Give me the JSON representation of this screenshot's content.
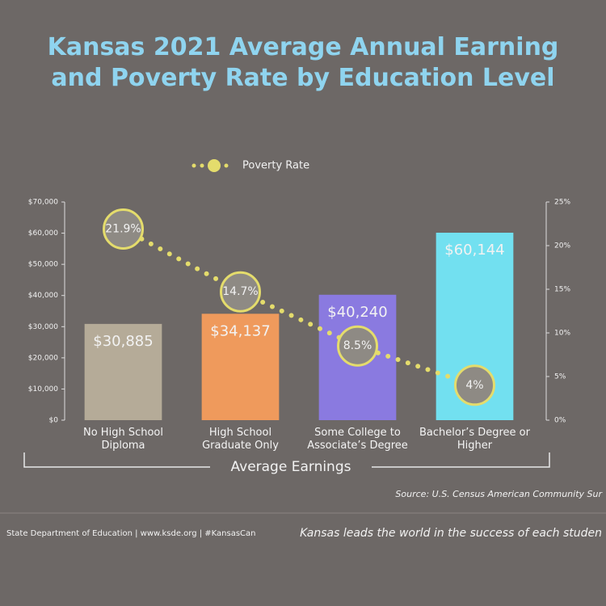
{
  "chart_data": {
    "type": "bar_line",
    "title": "Kansas 2021 Average Annual Earning and Poverty Rate by Education Level",
    "categories": [
      "No High School Diploma",
      "High School Graduate Only",
      "Some College to Associate’s Degree",
      "Bachelor’s Degree or Higher"
    ],
    "series": [
      {
        "name": "Average Earnings",
        "type": "bar",
        "colors": [
          "#b5ab98",
          "#ef9a5c",
          "#8a7ae0",
          "#72e0f0"
        ],
        "values": [
          30885,
          34137,
          40240,
          60144
        ],
        "value_labels": [
          "$30,885",
          "$34,137",
          "$40,240",
          "$60,144"
        ]
      },
      {
        "name": "Poverty Rate",
        "type": "line",
        "axis": "y2",
        "color": "#e4dc6c",
        "values": [
          21.9,
          14.7,
          8.5,
          4
        ],
        "value_labels": [
          "21.9%",
          "14.7%",
          "8.5%",
          "4%"
        ]
      }
    ],
    "ylim": [
      0,
      70000
    ],
    "yticks": [
      {
        "value": 0,
        "label": "$0"
      },
      {
        "value": 10000,
        "label": "$10,000"
      },
      {
        "value": 20000,
        "label": "$20,000"
      },
      {
        "value": 30000,
        "label": "$30,000"
      },
      {
        "value": 40000,
        "label": "$40,000"
      },
      {
        "value": 50000,
        "label": "$50,000"
      },
      {
        "value": 60000,
        "label": "$60,000"
      },
      {
        "value": 70000,
        "label": "$70,000"
      }
    ],
    "y2lim": [
      0,
      25
    ],
    "y2ticks": [
      {
        "value": 0,
        "label": "0%"
      },
      {
        "value": 5,
        "label": "5%"
      },
      {
        "value": 10,
        "label": "10%"
      },
      {
        "value": 15,
        "label": "15%"
      },
      {
        "value": 20,
        "label": "20%"
      },
      {
        "value": 25,
        "label": "25%"
      }
    ],
    "source": "Source: U.S. Census American Community Sur",
    "footer_left": "State Department of Education | www.ksde.org | #KansasCan",
    "footer_right": "Kansas leads the world in the success of each studen"
  }
}
